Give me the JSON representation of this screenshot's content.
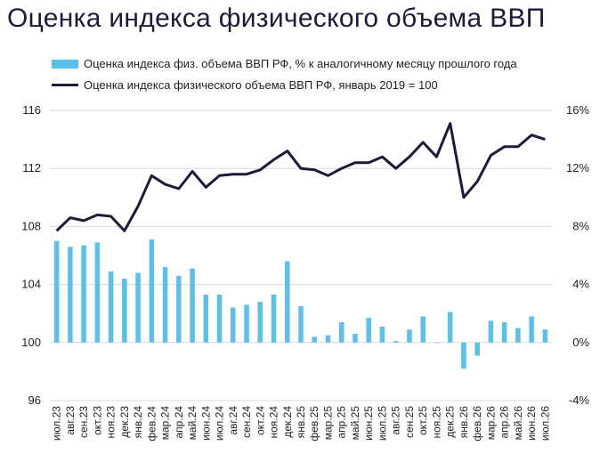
{
  "chart_data": {
    "type": "bar+line",
    "title": "Оценка индекса физического объема ВВП",
    "categories": [
      "июл.23",
      "авг.23",
      "сен.23",
      "окт.23",
      "ноя.23",
      "дек.23",
      "янв.24",
      "фев.24",
      "мар.24",
      "апр.24",
      "май.24",
      "июн.24",
      "июл.24",
      "авг.24",
      "сен.24",
      "окт.24",
      "ноя.24",
      "дек.24",
      "янв.25",
      "фев.25",
      "мар.25",
      "апр.25",
      "май.25",
      "июн.25",
      "июл.25",
      "авг.25",
      "сен.25",
      "окт.25",
      "ноя.25",
      "дек.25",
      "янв.26",
      "фев.26",
      "мар.26",
      "апр.26",
      "май.26",
      "июн.26",
      "июл.26"
    ],
    "series": [
      {
        "name": "Оценка индекса физ. объема ВВП РФ, % к аналогичному месяцу прошлого года",
        "kind": "bar",
        "axis": "right",
        "color": "#5bc0eb",
        "values": [
          7.0,
          6.6,
          6.7,
          6.9,
          4.9,
          4.4,
          4.8,
          7.1,
          5.2,
          4.6,
          5.1,
          3.3,
          3.3,
          2.4,
          2.6,
          2.8,
          3.3,
          5.6,
          2.5,
          0.4,
          0.5,
          1.4,
          0.6,
          1.7,
          1.1,
          0.1,
          0.9,
          1.8,
          0.0,
          2.1,
          -1.8,
          -0.9,
          1.5,
          1.4,
          1.0,
          1.8,
          0.9
        ]
      },
      {
        "name": "Оценка индекса физического объема ВВП РФ, январь 2019 = 100",
        "kind": "line",
        "axis": "left",
        "color": "#1c1c3a",
        "values": [
          107.7,
          108.6,
          108.4,
          108.8,
          108.7,
          107.7,
          109.4,
          111.5,
          110.9,
          110.6,
          111.8,
          110.7,
          111.5,
          111.6,
          111.6,
          111.9,
          112.6,
          113.2,
          112.0,
          111.9,
          111.5,
          112.0,
          112.4,
          112.4,
          112.8,
          112.0,
          112.8,
          113.8,
          112.8,
          115.1,
          110.0,
          111.1,
          112.9,
          113.5,
          113.5,
          114.3,
          114.0
        ]
      }
    ],
    "ylim_left": [
      96,
      116
    ],
    "yticks_left": [
      "96",
      "100",
      "104",
      "108",
      "112",
      "116"
    ],
    "ylim_right": [
      -4,
      16
    ],
    "yticks_right": [
      "-4%",
      "0%",
      "4%",
      "8%",
      "12%",
      "16%"
    ],
    "grid": "horizontal",
    "legend_position": "top"
  }
}
